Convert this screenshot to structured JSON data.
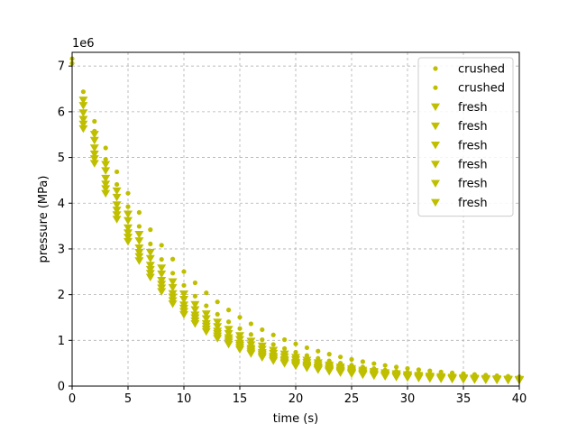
{
  "chart_data": {
    "type": "scatter",
    "title": "",
    "xlabel": "time (s)",
    "ylabel": "pressure (MPa)",
    "y_offset_text": "1e6",
    "xlim": [
      0,
      40
    ],
    "ylim": [
      0,
      7300000
    ],
    "xticks": [
      0,
      5,
      10,
      15,
      20,
      25,
      30,
      35,
      40
    ],
    "yticks": [
      0,
      1000000,
      2000000,
      3000000,
      4000000,
      5000000,
      6000000,
      7000000
    ],
    "xtick_labels": [
      "0",
      "5",
      "10",
      "15",
      "20",
      "25",
      "30",
      "35",
      "40"
    ],
    "ytick_labels": [
      "0",
      "1",
      "2",
      "3",
      "4",
      "5",
      "6",
      "7"
    ],
    "grid": true,
    "legend_position": "top-right",
    "color": "#bfbf00",
    "series": [
      {
        "name": "crushed",
        "marker": "dot",
        "a": 7050000,
        "k": 0.108,
        "x_start": 0
      },
      {
        "name": "crushed",
        "marker": "dot",
        "a": 6950000,
        "k": 0.12,
        "x_start": 0
      },
      {
        "name": "fresh",
        "marker": "triangle",
        "a": 7000000,
        "k": 0.13,
        "x_start": 1
      },
      {
        "name": "fresh",
        "marker": "triangle",
        "a": 6900000,
        "k": 0.135,
        "x_start": 1
      },
      {
        "name": "fresh",
        "marker": "triangle",
        "a": 6750000,
        "k": 0.14,
        "x_start": 1
      },
      {
        "name": "fresh",
        "marker": "triangle",
        "a": 6600000,
        "k": 0.142,
        "x_start": 1
      },
      {
        "name": "fresh",
        "marker": "triangle",
        "a": 6500000,
        "k": 0.145,
        "x_start": 1
      },
      {
        "name": "fresh",
        "marker": "triangle",
        "a": 6400000,
        "k": 0.148,
        "x_start": 1
      }
    ]
  }
}
